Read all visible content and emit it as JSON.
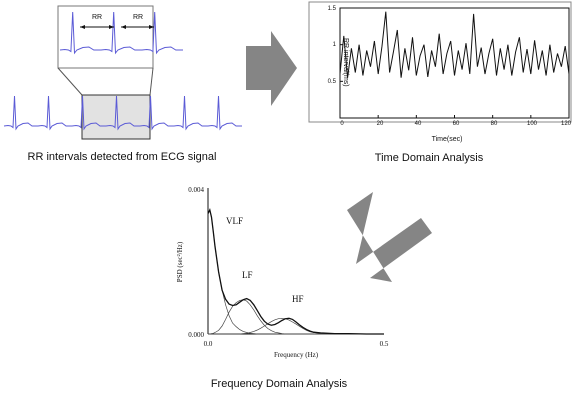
{
  "ecg_panel": {
    "caption": "RR intervals detected from ECG signal",
    "zoom_label_1": "RR",
    "zoom_label_2": "RR",
    "ecg_color": "#5b5bd6"
  },
  "time_panel": {
    "caption": "Time Domain Analysis",
    "xlabel": "Time(sec)",
    "ylabel": "RR interval(ms)",
    "x_ticks": [
      "0",
      "20",
      "40",
      "60",
      "80",
      "100",
      "120"
    ],
    "y_ticks": [
      "1.5",
      "1",
      "0.5"
    ]
  },
  "freq_panel": {
    "caption": "Frequency Domain Analysis",
    "xlabel": "Frequency (Hz)",
    "ylabel": "PSD (sec²/Hz)",
    "y_top_tick": "0.004",
    "y_bottom_tick": "0.000",
    "x_left_tick": "0.0",
    "x_right_tick": "0.5",
    "band_vlf": "VLF",
    "band_lf": "LF",
    "band_hf": "HF"
  },
  "arrows": {
    "color": "#858585",
    "direction_1": "right",
    "direction_2": "down-left"
  },
  "chart_data": [
    {
      "type": "line",
      "x": [
        0,
        2,
        4,
        6,
        8,
        10,
        12,
        14,
        16,
        18,
        20,
        22,
        24,
        26,
        28,
        30,
        32,
        34,
        36,
        38,
        40,
        42,
        44,
        46,
        48,
        50,
        52,
        54,
        56,
        58,
        60,
        62,
        64,
        66,
        68,
        70,
        72,
        74,
        76,
        78,
        80,
        82,
        84,
        86,
        88,
        90,
        92,
        94,
        96,
        98,
        100,
        102,
        104,
        106,
        108,
        110,
        112,
        114,
        116,
        118,
        120
      ],
      "y": [
        0.6,
        1.12,
        0.55,
        0.95,
        0.62,
        1.0,
        0.58,
        0.92,
        0.7,
        1.05,
        0.6,
        0.98,
        1.45,
        0.62,
        0.9,
        1.2,
        0.55,
        0.95,
        0.65,
        1.1,
        0.58,
        0.85,
        1.0,
        0.56,
        0.92,
        0.7,
        1.15,
        0.6,
        0.88,
        1.05,
        0.58,
        0.92,
        0.66,
        1.02,
        0.6,
        1.42,
        0.7,
        0.96,
        0.6,
        0.88,
        1.08,
        0.58,
        0.95,
        0.66,
        1.0,
        0.58,
        0.9,
        1.1,
        0.62,
        0.94,
        0.6,
        1.06,
        0.66,
        0.92,
        0.58,
        1.0,
        0.62,
        0.88,
        0.7,
        0.98,
        0.6
      ],
      "xlabel": "Time(sec)",
      "ylabel": "RR interval(ms)",
      "xlim": [
        0,
        120
      ],
      "ylim": [
        0,
        1.5
      ],
      "grid": false
    },
    {
      "type": "line",
      "x": [
        0.0,
        0.005,
        0.01,
        0.015,
        0.02,
        0.03,
        0.04,
        0.05,
        0.06,
        0.07,
        0.08,
        0.09,
        0.1,
        0.11,
        0.12,
        0.13,
        0.14,
        0.15,
        0.16,
        0.17,
        0.18,
        0.19,
        0.2,
        0.21,
        0.22,
        0.23,
        0.24,
        0.25,
        0.26,
        0.27,
        0.28,
        0.29,
        0.3,
        0.32,
        0.34,
        0.36,
        0.4,
        0.45,
        0.5
      ],
      "series": [
        {
          "values": [
            0.0033,
            0.0034,
            0.0032,
            0.0028,
            0.0024,
            0.0017,
            0.0012,
            0.00095,
            0.00082,
            0.00078,
            0.0008,
            0.00087,
            0.00094,
            0.00097,
            0.00092,
            0.0008,
            0.00064,
            0.00048,
            0.00035,
            0.00027,
            0.00024,
            0.00026,
            0.00031,
            0.00037,
            0.00042,
            0.00043,
            0.0004,
            0.00033,
            0.00025,
            0.00018,
            0.00012,
            8e-05,
            5e-05,
            3e-05,
            2e-05,
            1e-05,
            1e-05,
            0.0,
            0.0
          ]
        },
        {
          "values": [
            0.0033,
            0.0034,
            0.0032,
            0.0028,
            0.0024,
            0.0017,
            0.0012,
            0.0008,
            0.0005,
            0.0003,
            0.0002,
            0.00012,
            7e-05,
            4e-05,
            2e-05,
            1e-05,
            0.0,
            0.0,
            0.0,
            0.0,
            0.0,
            0.0,
            0.0,
            0.0,
            0.0,
            0.0,
            0.0,
            0.0,
            0.0,
            0.0,
            0.0,
            0.0,
            0.0,
            0.0,
            0.0,
            0.0,
            0.0,
            0.0,
            0.0
          ]
        },
        {
          "values": [
            0.0,
            0.0,
            1e-05,
            2e-05,
            4e-05,
            0.0001,
            0.00022,
            0.0004,
            0.0006,
            0.00076,
            0.00086,
            0.00092,
            0.00094,
            0.0009,
            0.0008,
            0.00066,
            0.0005,
            0.00036,
            0.00024,
            0.00015,
            9e-05,
            5e-05,
            3e-05,
            1e-05,
            0.0,
            0.0,
            0.0,
            0.0,
            0.0,
            0.0,
            0.0,
            0.0,
            0.0,
            0.0,
            0.0,
            0.0,
            0.0,
            0.0,
            0.0
          ]
        },
        {
          "values": [
            0.0,
            0.0,
            0.0,
            0.0,
            0.0,
            0.0,
            0.0,
            0.0,
            0.0,
            0.0,
            0.0,
            0.0,
            1e-05,
            2e-05,
            4e-05,
            7e-05,
            0.00011,
            0.00016,
            0.00022,
            0.00028,
            0.00034,
            0.00039,
            0.00042,
            0.00043,
            0.00042,
            0.00038,
            0.00033,
            0.00027,
            0.00021,
            0.00015,
            0.0001,
            6e-05,
            4e-05,
            2e-05,
            1e-05,
            0.0,
            0.0,
            0.0,
            0.0
          ]
        }
      ],
      "xlabel": "Frequency (Hz)",
      "ylabel": "PSD (sec²/Hz)",
      "xlim": [
        0,
        0.5
      ],
      "ylim": [
        0,
        0.004
      ],
      "grid": false
    }
  ]
}
